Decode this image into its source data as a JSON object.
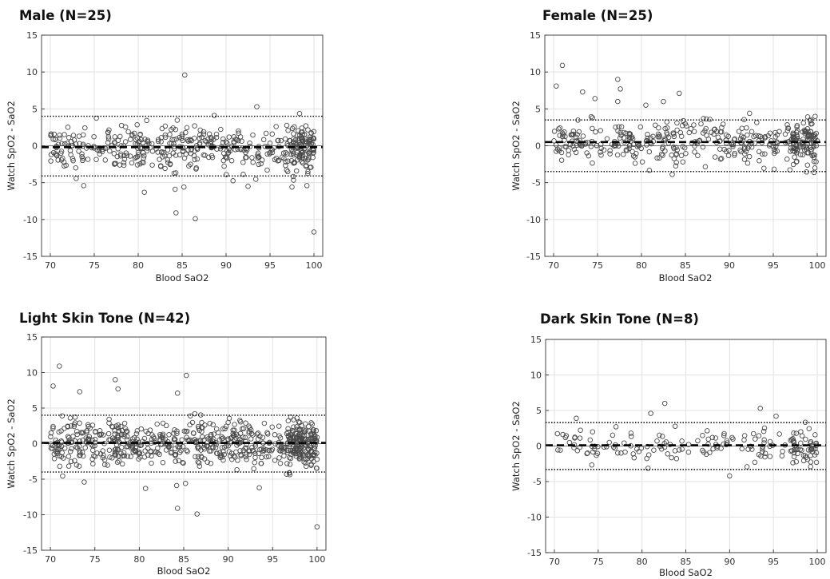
{
  "figure": {
    "background": "#ffffff",
    "marker_color": "#4a4a4a",
    "line_color": "#000000"
  },
  "chart_data": [
    {
      "type": "scatter",
      "title": "Male (N=25)",
      "xlabel": "Blood SaO2",
      "ylabel": "Watch SpO2 - SaO2",
      "xlim": [
        69,
        101
      ],
      "ylim": [
        -15,
        15
      ],
      "xticks": [
        70,
        75,
        80,
        85,
        90,
        95,
        100
      ],
      "yticks": [
        -15,
        -10,
        -5,
        0,
        5,
        10,
        15
      ],
      "grid": true,
      "bias": -0.2,
      "loa_upper": 4.0,
      "loa_lower": -4.1,
      "n_points": 480,
      "seed": 11,
      "outliers": [
        [
          85.3,
          9.6
        ],
        [
          84.3,
          -9.1
        ],
        [
          86.5,
          -9.9
        ],
        [
          100,
          -11.7
        ],
        [
          80.7,
          -6.3
        ],
        [
          73.8,
          -5.4
        ],
        [
          84.2,
          -5.9
        ],
        [
          85.2,
          -5.6
        ],
        [
          92.5,
          -5.5
        ],
        [
          93.5,
          5.3
        ],
        [
          97.5,
          -5.6
        ],
        [
          99.2,
          -5.4
        ]
      ]
    },
    {
      "type": "scatter",
      "title": "Female (N=25)",
      "xlabel": "Blood SaO2",
      "ylabel": "Watch SpO2 - SaO2",
      "xlim": [
        69,
        101
      ],
      "ylim": [
        -15,
        15
      ],
      "xticks": [
        70,
        75,
        80,
        85,
        90,
        95,
        100
      ],
      "yticks": [
        -15,
        -10,
        -5,
        0,
        5,
        10,
        15
      ],
      "grid": true,
      "bias": 0.5,
      "loa_upper": 3.5,
      "loa_lower": -3.5,
      "n_points": 420,
      "seed": 23,
      "outliers": [
        [
          71.0,
          10.9
        ],
        [
          70.3,
          8.1
        ],
        [
          77.3,
          9.0
        ],
        [
          77.6,
          7.7
        ],
        [
          73.3,
          7.3
        ],
        [
          84.3,
          7.1
        ],
        [
          77.3,
          6.0
        ],
        [
          82.5,
          6.0
        ],
        [
          74.7,
          6.4
        ],
        [
          80.5,
          5.5
        ],
        [
          83.5,
          -3.9
        ],
        [
          92.3,
          4.4
        ]
      ]
    },
    {
      "type": "scatter",
      "title": "Light Skin Tone (N=42)",
      "xlabel": "Blood SaO2",
      "ylabel": "Watch SpO2 - SaO2",
      "xlim": [
        69,
        101
      ],
      "ylim": [
        -15,
        15
      ],
      "xticks": [
        70,
        75,
        80,
        85,
        90,
        95,
        100
      ],
      "yticks": [
        -15,
        -10,
        -5,
        0,
        5,
        10,
        15
      ],
      "grid": true,
      "bias": 0.1,
      "loa_upper": 4.0,
      "loa_lower": -4.0,
      "n_points": 700,
      "seed": 37,
      "outliers": [
        [
          71.0,
          10.9
        ],
        [
          70.3,
          8.1
        ],
        [
          77.3,
          9.0
        ],
        [
          77.6,
          7.7
        ],
        [
          73.3,
          7.3
        ],
        [
          84.3,
          7.1
        ],
        [
          85.3,
          9.6
        ],
        [
          84.3,
          -9.1
        ],
        [
          86.5,
          -9.9
        ],
        [
          100,
          -11.7
        ],
        [
          80.7,
          -6.3
        ],
        [
          73.8,
          -5.4
        ],
        [
          84.2,
          -5.9
        ],
        [
          85.2,
          -5.6
        ],
        [
          93.5,
          -6.2
        ]
      ]
    },
    {
      "type": "scatter",
      "title": "Dark Skin Tone (N=8)",
      "xlabel": "Blood SaO2",
      "ylabel": "Watch SpO2 - SaO2",
      "xlim": [
        69,
        101
      ],
      "ylim": [
        -15,
        15
      ],
      "xticks": [
        70,
        75,
        80,
        85,
        90,
        95,
        100
      ],
      "yticks": [
        -15,
        -10,
        -5,
        0,
        5,
        10,
        15
      ],
      "grid": true,
      "bias": 0.1,
      "loa_upper": 3.3,
      "loa_lower": -3.3,
      "n_points": 180,
      "seed": 53,
      "outliers": [
        [
          82.6,
          6.0
        ],
        [
          93.5,
          5.3
        ],
        [
          95.3,
          4.2
        ],
        [
          72.5,
          3.9
        ],
        [
          90.0,
          -4.2
        ],
        [
          81.0,
          4.6
        ]
      ]
    }
  ]
}
